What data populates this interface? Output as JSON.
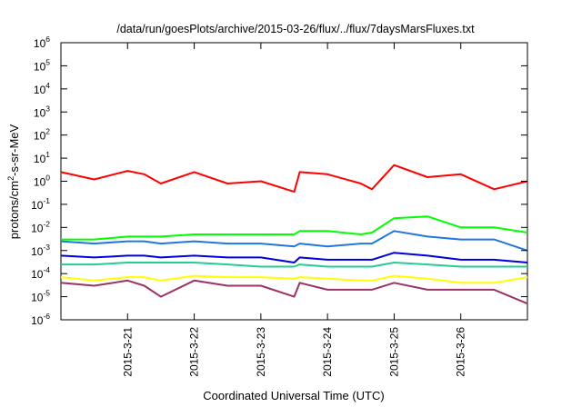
{
  "chart_data": {
    "type": "line",
    "title": "/data/run/goesPlots/archive/2015-03-26/flux/../flux/7daysMarsFluxes.txt",
    "xlabel": "Coordinated Universal Time (UTC)",
    "ylabel": "protons/cm²-s-sr-MeV",
    "ylabel_parts": {
      "pre": "protons/cm",
      "sup": "2",
      "post": "-s-sr-MeV"
    },
    "yscale": "log",
    "ylim": [
      1e-06,
      1000000.0
    ],
    "y_tick_exponents": [
      -6,
      -5,
      -4,
      -3,
      -2,
      -1,
      0,
      1,
      2,
      3,
      4,
      5,
      6
    ],
    "y_tick_base": "10",
    "xlim": [
      "2015-03-20T00:00",
      "2015-03-27T00:00"
    ],
    "x_ticks": [
      "2015-3-21",
      "2015-3-22",
      "2015-3-23",
      "2015-3-24",
      "2015-3-25",
      "2015-3-26"
    ],
    "grid": false,
    "legend": "none",
    "x": [
      "2015-03-20T00:00",
      "2015-03-20T12:00",
      "2015-03-21T00:00",
      "2015-03-21T06:00",
      "2015-03-21T12:00",
      "2015-03-22T00:00",
      "2015-03-22T12:00",
      "2015-03-23T00:00",
      "2015-03-23T12:00",
      "2015-03-23T14:00",
      "2015-03-24T00:00",
      "2015-03-24T12:00",
      "2015-03-24T16:00",
      "2015-03-25T00:00",
      "2015-03-25T12:00",
      "2015-03-26T00:00",
      "2015-03-26T12:00",
      "2015-03-27T00:00"
    ],
    "series": [
      {
        "color": "#ff0000",
        "values": [
          2.5,
          1.2,
          2.8,
          2.0,
          0.8,
          2.5,
          0.8,
          1.0,
          0.35,
          2.5,
          2.0,
          0.8,
          0.45,
          5.0,
          1.5,
          2.0,
          0.45,
          1.0
        ]
      },
      {
        "color": "#00ff00",
        "values": [
          0.003,
          0.003,
          0.004,
          0.004,
          0.004,
          0.005,
          0.005,
          0.005,
          0.005,
          0.007,
          0.007,
          0.005,
          0.006,
          0.025,
          0.03,
          0.01,
          0.01,
          0.006
        ]
      },
      {
        "color": "#2277dd",
        "values": [
          0.0025,
          0.002,
          0.0025,
          0.0025,
          0.002,
          0.0025,
          0.002,
          0.002,
          0.0015,
          0.002,
          0.0015,
          0.002,
          0.002,
          0.007,
          0.004,
          0.003,
          0.003,
          0.001
        ]
      },
      {
        "color": "#0000dd",
        "values": [
          0.0006,
          0.0005,
          0.0006,
          0.0006,
          0.0005,
          0.0006,
          0.0005,
          0.0005,
          0.0003,
          0.0005,
          0.0004,
          0.0004,
          0.0004,
          0.0008,
          0.0006,
          0.0004,
          0.0004,
          0.0003
        ]
      },
      {
        "color": "#22cc99",
        "values": [
          0.00025,
          0.00025,
          0.0003,
          0.0003,
          0.0003,
          0.0003,
          0.00025,
          0.0002,
          0.0002,
          0.00025,
          0.0002,
          0.0002,
          0.0002,
          0.0003,
          0.00025,
          0.0002,
          0.0002,
          0.0002
        ]
      },
      {
        "color": "#ffff00",
        "values": [
          7e-05,
          5e-05,
          7e-05,
          7e-05,
          5e-05,
          8e-05,
          7e-05,
          7e-05,
          6e-05,
          7e-05,
          6e-05,
          5e-05,
          5e-05,
          8e-05,
          6e-05,
          4e-05,
          4e-05,
          7e-05
        ]
      },
      {
        "color": "#993366",
        "values": [
          4e-05,
          3e-05,
          5e-05,
          3e-05,
          1e-05,
          5e-05,
          3e-05,
          3e-05,
          1e-05,
          4e-05,
          2e-05,
          2e-05,
          2e-05,
          4e-05,
          2e-05,
          2e-05,
          2e-05,
          5e-06
        ]
      }
    ]
  }
}
